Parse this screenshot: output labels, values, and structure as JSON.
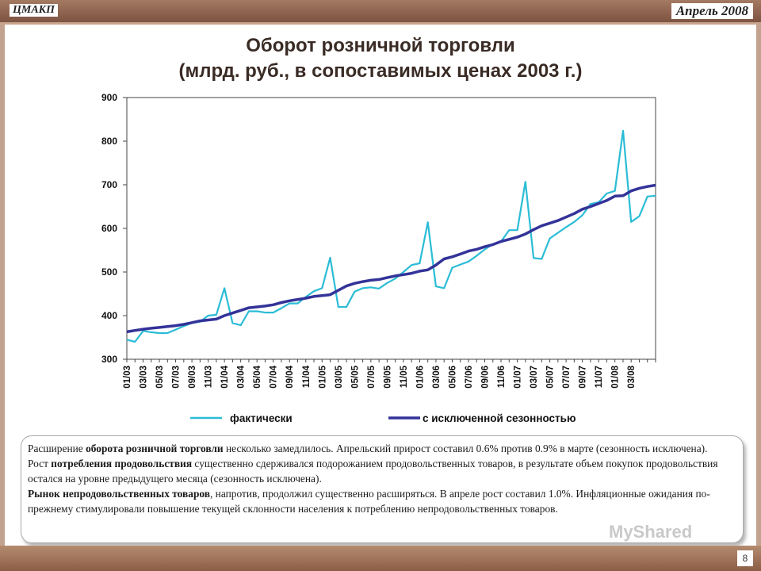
{
  "header": {
    "brand": "ЦМАКП",
    "date": "Апрель 2008"
  },
  "chart_data": {
    "type": "line",
    "title": "Оборот розничной торговли",
    "subtitle": "(млрд. руб., в сопоставимых ценах 2003 г.)",
    "ylim": [
      300,
      900
    ],
    "y_ticks": [
      300,
      400,
      500,
      600,
      700,
      800,
      900
    ],
    "x_tick_labels": [
      "01/03",
      "03/03",
      "05/03",
      "07/03",
      "09/03",
      "11/03",
      "01/04",
      "03/04",
      "05/04",
      "07/04",
      "09/04",
      "11/04",
      "01/05",
      "03/05",
      "05/05",
      "07/05",
      "09/05",
      "11/05",
      "01/06",
      "03/06",
      "05/06",
      "07/06",
      "09/06",
      "11/06",
      "01/07",
      "03/07",
      "05/07",
      "07/07",
      "09/07",
      "11/07",
      "01/08",
      "03/08"
    ],
    "legend_position": "bottom",
    "grid": false,
    "series": [
      {
        "name": "фактически",
        "color": "#2bbcd6",
        "values": [
          345,
          340,
          365,
          362,
          360,
          360,
          368,
          376,
          383,
          386,
          400,
          402,
          463,
          383,
          378,
          410,
          410,
          407,
          407,
          417,
          428,
          428,
          443,
          456,
          463,
          533,
          420,
          420,
          455,
          463,
          465,
          462,
          475,
          485,
          500,
          516,
          520,
          614,
          467,
          463,
          510,
          517,
          524,
          537,
          552,
          564,
          570,
          596,
          596,
          707,
          532,
          530,
          577,
          590,
          603,
          615,
          630,
          656,
          660,
          680,
          686,
          824,
          615,
          628,
          673,
          675
        ]
      },
      {
        "name": "с исключенной сезонностью",
        "color": "#333399",
        "values": [
          363,
          366,
          369,
          371,
          373,
          375,
          377,
          380,
          384,
          388,
          390,
          392,
          400,
          406,
          412,
          418,
          420,
          422,
          425,
          430,
          434,
          437,
          440,
          444,
          446,
          448,
          458,
          468,
          474,
          478,
          481,
          483,
          487,
          491,
          494,
          497,
          502,
          505,
          516,
          530,
          535,
          541,
          548,
          552,
          558,
          563,
          570,
          575,
          580,
          587,
          597,
          606,
          612,
          618,
          626,
          634,
          644,
          650,
          657,
          664,
          674,
          675,
          686,
          692,
          696,
          699
        ]
      }
    ]
  },
  "note": {
    "p1": "Расширение ",
    "b1": "оборота розничной торговли",
    "p2": " несколько замедлилось. Апрельский прирост составил  0.6% против 0.9% в марте (сезонность исключена). Рост ",
    "b2": "потребления продовольствия",
    "p3": " существенно сдерживался подорожанием продовольственных товаров, в результате  объем покупок продовольствия остался на уровне предыдущего месяца (сезонность  исключена).",
    "b3": "Рынок непродовольственных товаров",
    "p4": ", напротив, продолжил существенно расширяться. В апреле  рост составил 1.0%. Инфляционные ожидания по-прежнему стимулировали повышение текущей склонности населения к потреблению непродовольственных товаров."
  },
  "footer": {
    "page": "8",
    "watermark": "MyShared"
  }
}
